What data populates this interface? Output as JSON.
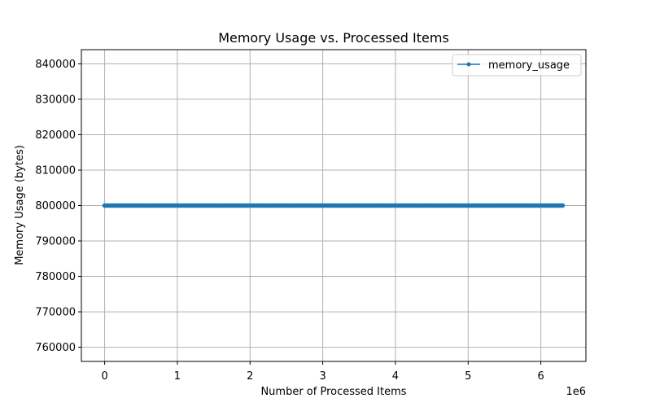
{
  "chart_data": {
    "type": "line",
    "title": "Memory Usage vs. Processed Items",
    "xlabel": "Number of Processed Items",
    "ylabel": "Memory Usage (bytes)",
    "x_offset_label": "1e6",
    "xlim": [
      -320000,
      6620000
    ],
    "ylim": [
      756000,
      844000
    ],
    "x_ticks": [
      0,
      1000000,
      2000000,
      3000000,
      4000000,
      5000000,
      6000000
    ],
    "x_tick_labels": [
      "0",
      "1",
      "2",
      "3",
      "4",
      "5",
      "6"
    ],
    "y_ticks": [
      760000,
      770000,
      780000,
      790000,
      800000,
      810000,
      820000,
      830000,
      840000
    ],
    "y_tick_labels": [
      "760000",
      "770000",
      "780000",
      "790000",
      "800000",
      "810000",
      "820000",
      "830000",
      "840000"
    ],
    "grid": true,
    "legend_position": "top-right",
    "series": [
      {
        "name": "memory_usage",
        "color": "#1f77b4",
        "marker": "point",
        "x_start": 0,
        "x_end": 6300000,
        "x_step": 20000,
        "y_value": 800000
      }
    ]
  }
}
